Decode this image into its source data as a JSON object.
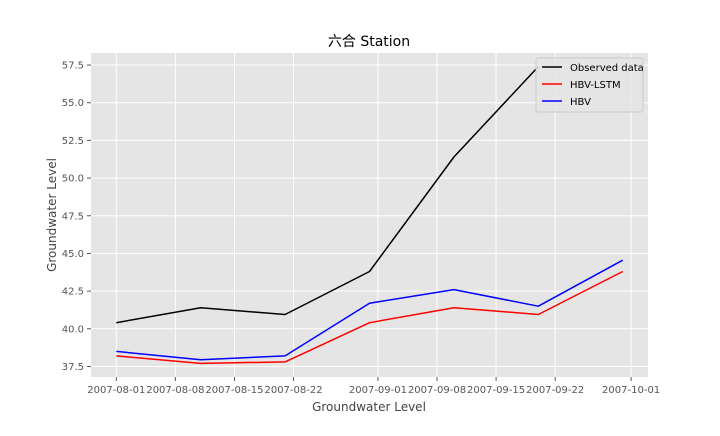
{
  "chart_data": {
    "type": "line",
    "title": "六合 Station",
    "xlabel": "Groundwater Level",
    "ylabel": "Groundwater Level",
    "x_type": "date",
    "xlim": [
      "2007-07-29",
      "2007-10-03"
    ],
    "ylim": [
      36.8,
      58.3
    ],
    "grid": true,
    "legend_position": "top-right",
    "x_ticks": [
      "2007-08-01",
      "2007-08-08",
      "2007-08-15",
      "2007-08-22",
      "2007-09-01",
      "2007-09-08",
      "2007-09-15",
      "2007-09-22",
      "2007-10-01"
    ],
    "y_ticks": [
      37.5,
      40.0,
      42.5,
      45.0,
      47.5,
      50.0,
      52.5,
      55.0,
      57.5
    ],
    "y_tick_labels": [
      "37.5",
      "40.0",
      "42.5",
      "45.0",
      "47.5",
      "50.0",
      "52.5",
      "55.0",
      "57.5"
    ],
    "series": [
      {
        "name": "Observed data",
        "color": "#000000",
        "x": [
          "2007-08-01",
          "2007-08-11",
          "2007-08-21",
          "2007-08-31",
          "2007-09-10",
          "2007-09-20"
        ],
        "y": [
          40.4,
          41.4,
          40.95,
          43.8,
          51.4,
          57.4
        ]
      },
      {
        "name": "HBV-LSTM",
        "color": "#ff0000",
        "x": [
          "2007-08-01",
          "2007-08-11",
          "2007-08-21",
          "2007-08-31",
          "2007-09-10",
          "2007-09-20",
          "2007-09-30"
        ],
        "y": [
          38.2,
          37.7,
          37.8,
          40.4,
          41.4,
          40.95,
          43.8
        ]
      },
      {
        "name": "HBV",
        "color": "#0000ff",
        "x": [
          "2007-08-01",
          "2007-08-11",
          "2007-08-21",
          "2007-08-31",
          "2007-09-10",
          "2007-09-20",
          "2007-09-30"
        ],
        "y": [
          38.5,
          37.95,
          38.2,
          41.7,
          42.6,
          41.5,
          44.55
        ]
      }
    ]
  }
}
